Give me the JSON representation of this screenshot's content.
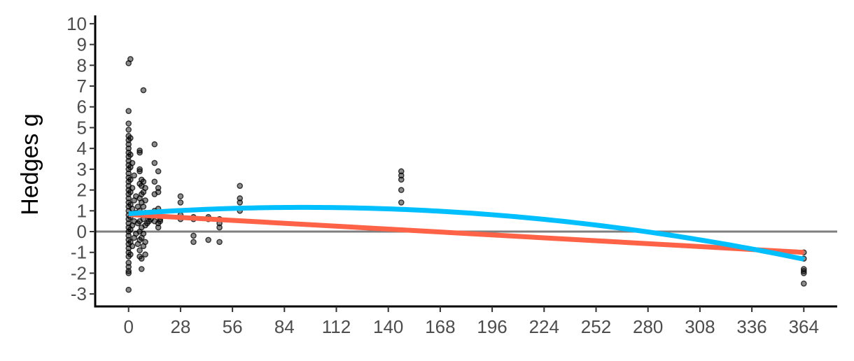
{
  "chart_data": {
    "type": "scatter",
    "title": "",
    "xlabel": "",
    "ylabel": "Hedges g",
    "xlim": [
      -18,
      382
    ],
    "ylim": [
      -3.6,
      10.4
    ],
    "x_ticks": [
      0,
      28,
      56,
      84,
      112,
      140,
      168,
      196,
      224,
      252,
      280,
      308,
      336,
      364
    ],
    "y_ticks": [
      -3,
      -2,
      -1,
      0,
      1,
      2,
      3,
      4,
      5,
      6,
      7,
      8,
      9,
      10
    ],
    "grid": false,
    "legend": "none",
    "reference_line_y": 0,
    "point_color": "#000000",
    "reference_line_color": "#7f7f7f",
    "points": [
      {
        "x": 0,
        "y": 8.1
      },
      {
        "x": 1,
        "y": 8.3
      },
      {
        "x": 0,
        "y": 5.8
      },
      {
        "x": 0,
        "y": 5.2
      },
      {
        "x": 0,
        "y": 4.9
      },
      {
        "x": 0,
        "y": 4.6
      },
      {
        "x": 0,
        "y": 4.4
      },
      {
        "x": 0,
        "y": 4.2
      },
      {
        "x": 0,
        "y": 4.0
      },
      {
        "x": 0,
        "y": 3.8
      },
      {
        "x": 0,
        "y": 3.6
      },
      {
        "x": 0,
        "y": 3.4
      },
      {
        "x": 0,
        "y": 3.2
      },
      {
        "x": 0,
        "y": 3.0
      },
      {
        "x": 0,
        "y": 2.8
      },
      {
        "x": 0,
        "y": 2.6
      },
      {
        "x": 0,
        "y": 2.4
      },
      {
        "x": 0,
        "y": 2.2
      },
      {
        "x": 0,
        "y": 2.0
      },
      {
        "x": 0,
        "y": 1.8
      },
      {
        "x": 0,
        "y": 1.6
      },
      {
        "x": 0,
        "y": 1.4
      },
      {
        "x": 0,
        "y": 1.2
      },
      {
        "x": 0,
        "y": 1.0
      },
      {
        "x": 0,
        "y": 0.8
      },
      {
        "x": 0,
        "y": 0.6
      },
      {
        "x": 0,
        "y": 0.4
      },
      {
        "x": 0,
        "y": 0.2
      },
      {
        "x": 0,
        "y": 0.0
      },
      {
        "x": 0,
        "y": -0.2
      },
      {
        "x": 0,
        "y": -0.4
      },
      {
        "x": 0,
        "y": -0.6
      },
      {
        "x": 0,
        "y": -0.8
      },
      {
        "x": 0,
        "y": -1.0
      },
      {
        "x": 0,
        "y": -1.2
      },
      {
        "x": 0,
        "y": -1.5
      },
      {
        "x": 0,
        "y": -1.7
      },
      {
        "x": 0,
        "y": -1.9
      },
      {
        "x": 0,
        "y": -2.0
      },
      {
        "x": 0,
        "y": -2.8
      },
      {
        "x": 1,
        "y": 4.5
      },
      {
        "x": 1,
        "y": 3.7
      },
      {
        "x": 1,
        "y": 3.1
      },
      {
        "x": 1,
        "y": 2.5
      },
      {
        "x": 1,
        "y": 1.9
      },
      {
        "x": 1,
        "y": 1.3
      },
      {
        "x": 1,
        "y": 0.7
      },
      {
        "x": 1,
        "y": 0.1
      },
      {
        "x": 1,
        "y": -0.5
      },
      {
        "x": 1,
        "y": -1.1
      },
      {
        "x": 2,
        "y": 3.3
      },
      {
        "x": 2,
        "y": 2.1
      },
      {
        "x": 2,
        "y": 1.1
      },
      {
        "x": 2,
        "y": 0.3
      },
      {
        "x": 2,
        "y": -0.7
      },
      {
        "x": 3,
        "y": 2.7
      },
      {
        "x": 3,
        "y": 1.5
      },
      {
        "x": 3,
        "y": 0.5
      },
      {
        "x": 3,
        "y": -0.3
      },
      {
        "x": 4,
        "y": 1.7
      },
      {
        "x": 4,
        "y": 0.9
      },
      {
        "x": 4,
        "y": -0.1
      },
      {
        "x": 5,
        "y": 1.2
      },
      {
        "x": 5,
        "y": 0.4
      },
      {
        "x": 5,
        "y": -0.6
      },
      {
        "x": 6,
        "y": 3.9
      },
      {
        "x": 6,
        "y": 3.8
      },
      {
        "x": 6,
        "y": 3.0
      },
      {
        "x": 6,
        "y": 2.9
      },
      {
        "x": 6,
        "y": 2.3
      },
      {
        "x": 6,
        "y": 1.6
      },
      {
        "x": 6,
        "y": 1.0
      },
      {
        "x": 6,
        "y": 0.5
      },
      {
        "x": 6,
        "y": 0.0
      },
      {
        "x": 6,
        "y": -0.4
      },
      {
        "x": 6,
        "y": -0.9
      },
      {
        "x": 6,
        "y": -1.2
      },
      {
        "x": 7,
        "y": 2.5
      },
      {
        "x": 7,
        "y": 2.2
      },
      {
        "x": 7,
        "y": 1.8
      },
      {
        "x": 7,
        "y": 1.4
      },
      {
        "x": 7,
        "y": 0.8
      },
      {
        "x": 7,
        "y": 0.2
      },
      {
        "x": 7,
        "y": -0.3
      },
      {
        "x": 7,
        "y": -1.3
      },
      {
        "x": 7,
        "y": -1.8
      },
      {
        "x": 8,
        "y": 6.8
      },
      {
        "x": 8,
        "y": 2.4
      },
      {
        "x": 8,
        "y": 1.9
      },
      {
        "x": 8,
        "y": 1.2
      },
      {
        "x": 8,
        "y": 0.6
      },
      {
        "x": 8,
        "y": -0.1
      },
      {
        "x": 8,
        "y": -0.7
      },
      {
        "x": 9,
        "y": 2.1
      },
      {
        "x": 9,
        "y": 1.5
      },
      {
        "x": 9,
        "y": 0.9
      },
      {
        "x": 9,
        "y": 0.3
      },
      {
        "x": 9,
        "y": -0.5
      },
      {
        "x": 9,
        "y": -1.1
      },
      {
        "x": 10,
        "y": 0.8
      },
      {
        "x": 10,
        "y": 0.4
      },
      {
        "x": 11,
        "y": 0.7
      },
      {
        "x": 11,
        "y": 0.5
      },
      {
        "x": 12,
        "y": 0.9
      },
      {
        "x": 12,
        "y": 0.6
      },
      {
        "x": 14,
        "y": 4.2
      },
      {
        "x": 14,
        "y": 3.3
      },
      {
        "x": 14,
        "y": 2.4
      },
      {
        "x": 14,
        "y": 1.8
      },
      {
        "x": 14,
        "y": 1.0
      },
      {
        "x": 14,
        "y": 0.5
      },
      {
        "x": 16,
        "y": 2.9
      },
      {
        "x": 16,
        "y": 2.1
      },
      {
        "x": 16,
        "y": 1.9
      },
      {
        "x": 16,
        "y": 1.1
      },
      {
        "x": 16,
        "y": 0.8
      },
      {
        "x": 16,
        "y": 0.4
      },
      {
        "x": 16,
        "y": 0.2
      },
      {
        "x": 17,
        "y": 0.6
      },
      {
        "x": 17,
        "y": 0.5
      },
      {
        "x": 28,
        "y": 1.7
      },
      {
        "x": 28,
        "y": 1.4
      },
      {
        "x": 28,
        "y": 0.8
      },
      {
        "x": 28,
        "y": 0.6
      },
      {
        "x": 35,
        "y": 0.7
      },
      {
        "x": 35,
        "y": 0.6
      },
      {
        "x": 35,
        "y": -0.2
      },
      {
        "x": 35,
        "y": -0.5
      },
      {
        "x": 43,
        "y": 0.7
      },
      {
        "x": 43,
        "y": 0.6
      },
      {
        "x": 43,
        "y": -0.4
      },
      {
        "x": 49,
        "y": 0.6
      },
      {
        "x": 49,
        "y": 0.4
      },
      {
        "x": 49,
        "y": 0.2
      },
      {
        "x": 49,
        "y": -0.5
      },
      {
        "x": 60,
        "y": 2.2
      },
      {
        "x": 60,
        "y": 1.6
      },
      {
        "x": 60,
        "y": 1.4
      },
      {
        "x": 60,
        "y": 1.0
      },
      {
        "x": 147,
        "y": 2.9
      },
      {
        "x": 147,
        "y": 2.7
      },
      {
        "x": 147,
        "y": 2.5
      },
      {
        "x": 147,
        "y": 2.0
      },
      {
        "x": 147,
        "y": 1.4
      },
      {
        "x": 364,
        "y": -1.0
      },
      {
        "x": 364,
        "y": -1.3
      },
      {
        "x": 364,
        "y": -1.8
      },
      {
        "x": 364,
        "y": -1.9
      },
      {
        "x": 364,
        "y": -2.0
      },
      {
        "x": 364,
        "y": -2.5
      }
    ],
    "fits": [
      {
        "kind": "linear",
        "color": "#ff6347",
        "x": [
          0,
          364
        ],
        "y": [
          0.82,
          -1.0
        ]
      },
      {
        "kind": "quadratic",
        "color": "#00bfff",
        "coefficients": [
          0.86,
          0.00646,
          -3.425e-05
        ],
        "x_range": [
          0,
          364
        ]
      }
    ]
  }
}
